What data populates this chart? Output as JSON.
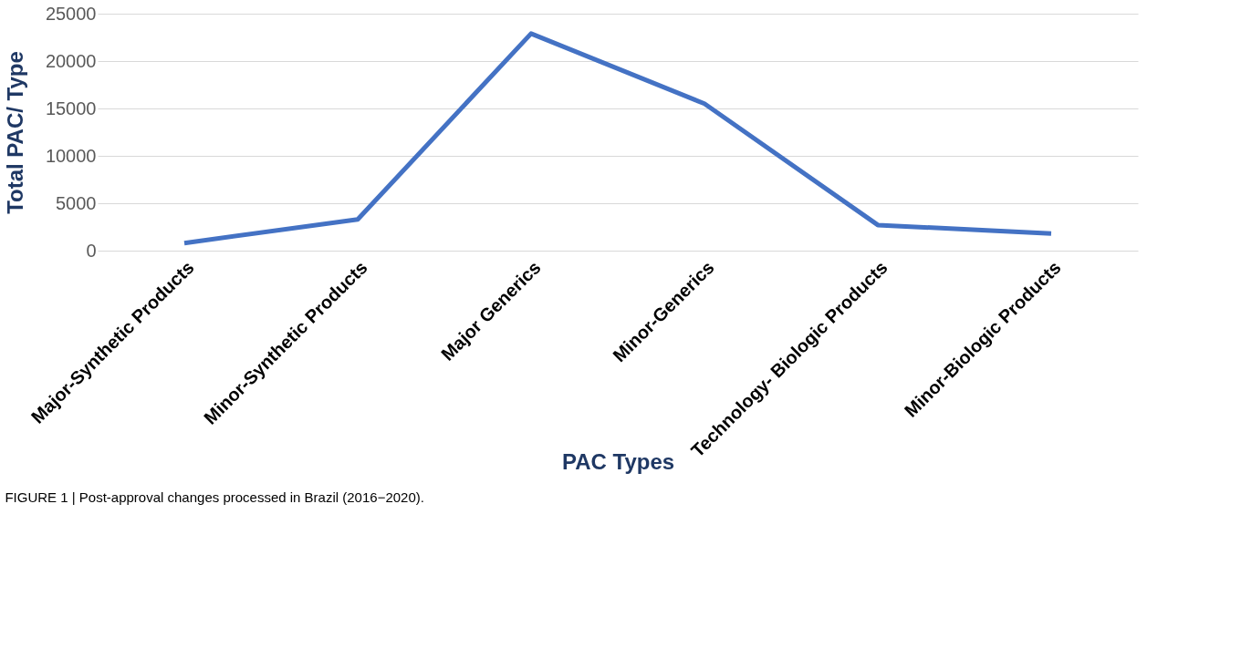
{
  "chart_data": {
    "type": "line",
    "categories": [
      "Major-Synthetic Products",
      "Minor-Synthetic Products",
      "Major Generics",
      "Minor-Generics",
      "Technology- Biologic Products",
      "Minor-Biologic Products"
    ],
    "series": [
      {
        "color": "#4472c4",
        "values": [
          800,
          3300,
          22900,
          15500,
          2700,
          1800
        ]
      }
    ],
    "xlabel": "PAC Types",
    "ylabel": "Total PAC/ Type",
    "ylim": [
      0,
      25000
    ],
    "yticks": [
      0,
      5000,
      10000,
      15000,
      20000,
      25000
    ],
    "grid": "y",
    "marker": "none",
    "line_style": "solid",
    "annotations": [
      "FIGURE 1 | Post-approval changes processed in Brazil (2016−2020)."
    ]
  }
}
